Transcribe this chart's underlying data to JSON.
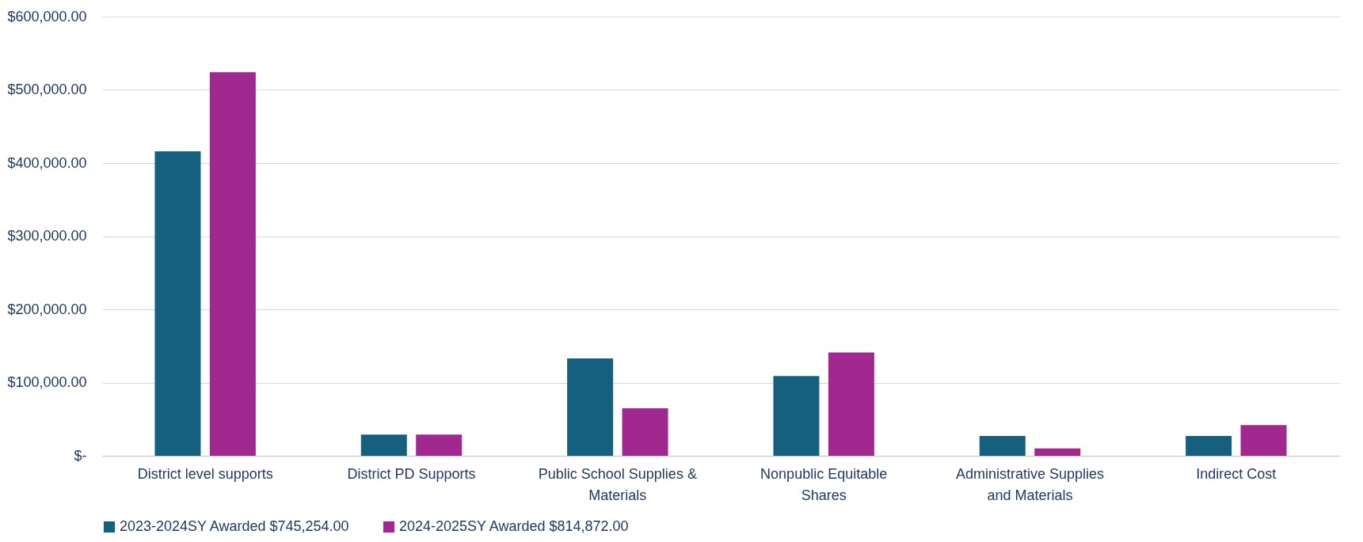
{
  "chart_data": {
    "type": "bar",
    "categories": [
      "District level supports",
      "District PD Supports",
      "Public School Supplies & Materials",
      "Nonpublic Equitable Shares",
      "Administrative Supplies and Materials",
      "Indirect Cost"
    ],
    "series": [
      {
        "name": "2023-2024SY Awarded $745,254.00",
        "color": "#15607f",
        "values": [
          416000,
          29000,
          133000,
          109000,
          27000,
          27000
        ]
      },
      {
        "name": "2024-2025SY Awarded $814,872.00",
        "color": "#a0288f",
        "values": [
          524000,
          29000,
          65000,
          141000,
          10000,
          42000
        ]
      }
    ],
    "ylim": [
      0,
      600000
    ],
    "yticks": [
      {
        "value": 0,
        "label": "$-"
      },
      {
        "value": 100000,
        "label": "$100,000.00"
      },
      {
        "value": 200000,
        "label": "$200,000.00"
      },
      {
        "value": 300000,
        "label": "$300,000.00"
      },
      {
        "value": 400000,
        "label": "$400,000.00"
      },
      {
        "value": 500000,
        "label": "$500,000.00"
      },
      {
        "value": 600000,
        "label": "$600,000.00"
      }
    ],
    "grid": "y",
    "legend": "bottom"
  }
}
